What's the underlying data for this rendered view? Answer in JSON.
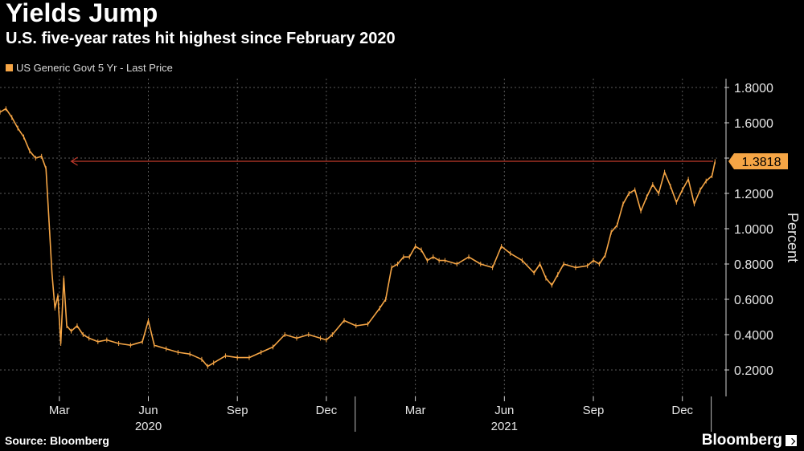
{
  "header": {
    "title": "Yields Jump",
    "subtitle": "U.S. five-year rates hit highest since February 2020"
  },
  "footer": {
    "source": "Source: Bloomberg",
    "brand": "Bloomberg"
  },
  "colors": {
    "series": "#f5a545",
    "reference_line": "#c0392b",
    "grid": "#5a5a5a",
    "background": "#000000"
  },
  "chart_data": {
    "type": "line",
    "title": "Yields Jump",
    "subtitle": "U.S. five-year rates hit highest since February 2020",
    "ylabel": "Percent",
    "xlabel": "",
    "ylim": [
      0.05,
      1.85
    ],
    "y_ticks": [
      "0.2000",
      "0.4000",
      "0.6000",
      "0.8000",
      "1.0000",
      "1.2000",
      "1.4000",
      "1.6000",
      "1.8000"
    ],
    "x_tick_labels": [
      "Mar",
      "Jun",
      "Sep",
      "Dec",
      "Mar",
      "Jun",
      "Sep",
      "Dec"
    ],
    "x_tick_months": [
      2.0,
      5.0,
      8.0,
      11.0,
      14.0,
      17.0,
      20.0,
      23.0
    ],
    "year_labels": [
      {
        "label": "2020",
        "month": 5.0
      },
      {
        "label": "2021",
        "month": 17.0
      }
    ],
    "x_range_months": [
      0.0,
      24.2
    ],
    "legend": [
      "US Generic Govt 5 Yr - Last Price"
    ],
    "last_value_label": "1.3818",
    "reference_level": 1.3818,
    "reference_start_month": 2.4,
    "grid": true,
    "series": [
      {
        "name": "US Generic Govt 5 Yr - Last Price",
        "months": [
          0.0,
          0.2,
          0.4,
          0.6,
          0.8,
          1.0,
          1.2,
          1.4,
          1.55,
          1.65,
          1.75,
          1.85,
          1.95,
          2.05,
          2.15,
          2.25,
          2.4,
          2.6,
          2.8,
          3.0,
          3.3,
          3.6,
          4.0,
          4.4,
          4.8,
          5.0,
          5.2,
          5.6,
          6.0,
          6.4,
          6.8,
          7.0,
          7.2,
          7.6,
          8.0,
          8.4,
          8.8,
          9.2,
          9.6,
          10.0,
          10.4,
          10.8,
          11.0,
          11.2,
          11.6,
          12.0,
          12.4,
          12.8,
          13.0,
          13.2,
          13.4,
          13.6,
          13.8,
          14.0,
          14.2,
          14.4,
          14.6,
          14.8,
          15.0,
          15.4,
          15.8,
          16.2,
          16.6,
          16.9,
          17.2,
          17.6,
          18.0,
          18.2,
          18.4,
          18.6,
          18.8,
          19.0,
          19.4,
          19.8,
          20.0,
          20.2,
          20.4,
          20.6,
          20.8,
          21.0,
          21.2,
          21.4,
          21.6,
          21.8,
          22.0,
          22.2,
          22.4,
          22.6,
          22.8,
          23.0,
          23.2,
          23.4,
          23.6,
          23.8,
          24.0,
          24.1
        ],
        "values": [
          1.66,
          1.68,
          1.63,
          1.57,
          1.52,
          1.44,
          1.4,
          1.41,
          1.34,
          1.05,
          0.75,
          0.55,
          0.62,
          0.35,
          0.72,
          0.45,
          0.42,
          0.45,
          0.4,
          0.38,
          0.36,
          0.37,
          0.35,
          0.34,
          0.36,
          0.48,
          0.34,
          0.32,
          0.3,
          0.29,
          0.26,
          0.22,
          0.24,
          0.28,
          0.27,
          0.27,
          0.3,
          0.33,
          0.4,
          0.38,
          0.4,
          0.38,
          0.37,
          0.4,
          0.48,
          0.45,
          0.46,
          0.55,
          0.6,
          0.78,
          0.8,
          0.84,
          0.84,
          0.9,
          0.88,
          0.82,
          0.84,
          0.82,
          0.82,
          0.8,
          0.84,
          0.8,
          0.78,
          0.9,
          0.86,
          0.82,
          0.75,
          0.8,
          0.72,
          0.68,
          0.74,
          0.8,
          0.78,
          0.79,
          0.82,
          0.8,
          0.85,
          0.98,
          1.02,
          1.14,
          1.2,
          1.22,
          1.1,
          1.18,
          1.25,
          1.2,
          1.32,
          1.24,
          1.15,
          1.22,
          1.28,
          1.14,
          1.22,
          1.27,
          1.3,
          1.38
        ]
      }
    ]
  }
}
